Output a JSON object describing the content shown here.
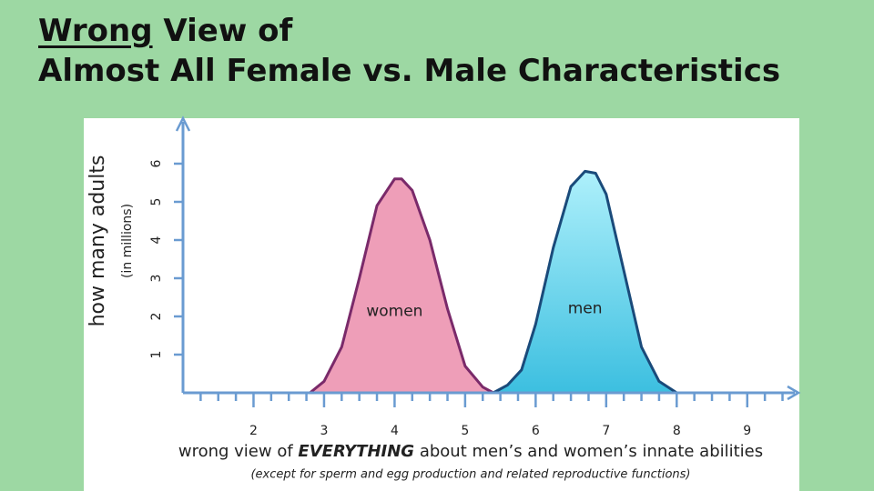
{
  "slide": {
    "title_emphasis": "Wrong",
    "title_line1": "View of",
    "title_line2": "Almost All Female vs. Male Characteristics"
  },
  "chart_data": {
    "type": "area",
    "ylabel": "how many adults",
    "ylabel_sub": "(in millions)",
    "xlabel_start": "wrong view of",
    "xlabel_emphasis": "EVERYTHING",
    "xlabel_end": "about men’s and women’s innate abilities",
    "note": "(except for sperm and egg production and related reproductive functions)",
    "xlim": [
      1,
      9.7
    ],
    "ylim": [
      0,
      7
    ],
    "xticks": [
      2,
      3,
      4,
      5,
      6,
      7,
      8,
      9
    ],
    "yticks": [
      1,
      2,
      3,
      4,
      5,
      6
    ],
    "x_minor_ticks": [
      1.25,
      1.5,
      1.75,
      2.25,
      2.5,
      2.75,
      3.25,
      3.5,
      3.75,
      4.25,
      4.5,
      4.75,
      5.25,
      5.5,
      5.75,
      6.25,
      6.5,
      6.75,
      7.25,
      7.5,
      7.75,
      8.25,
      8.5,
      8.75,
      9.25,
      9.5
    ],
    "series": [
      {
        "name": "women",
        "color": "#ee9eb8",
        "edge": "#7a2a6a",
        "x": [
          2.8,
          3.0,
          3.25,
          3.5,
          3.75,
          4.0,
          4.1,
          4.25,
          4.5,
          4.75,
          5.0,
          5.25,
          5.4
        ],
        "values": [
          0,
          0.3,
          1.2,
          3.0,
          4.9,
          5.6,
          5.6,
          5.3,
          4.0,
          2.2,
          0.7,
          0.15,
          0
        ]
      },
      {
        "name": "men",
        "color": "#5ccbe6",
        "edge": "#1a4a7a",
        "x": [
          5.4,
          5.6,
          5.8,
          6.0,
          6.25,
          6.5,
          6.7,
          6.85,
          7.0,
          7.25,
          7.5,
          7.75,
          8.0
        ],
        "values": [
          0,
          0.2,
          0.6,
          1.8,
          3.8,
          5.4,
          5.8,
          5.75,
          5.2,
          3.2,
          1.2,
          0.3,
          0
        ]
      }
    ]
  }
}
